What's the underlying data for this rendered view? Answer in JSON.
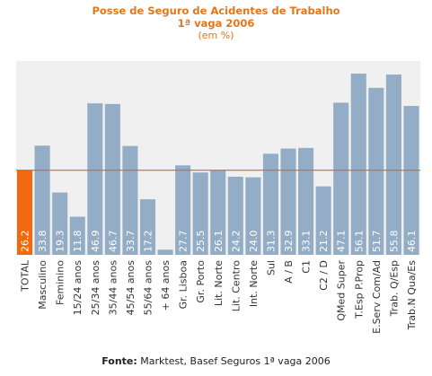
{
  "chart_data": {
    "type": "bar",
    "title": "Posse de Seguro de Acidentes de Trabalho",
    "subtitle": "1ª vaga 2006",
    "unit_note": "(em %)",
    "categories": [
      "TOTAL",
      "Masculino",
      "Feminino",
      "15/24 anos",
      "25/34 anos",
      "35/44 anos",
      "45/54 anos",
      "55/64 anos",
      "+ 64 anos",
      "Gr. Lisboa",
      "Gr. Porto",
      "Lit. Norte",
      "Lit. Centro",
      "Int. Norte",
      "Sul",
      "A / B",
      "C1",
      "C2 / D",
      "QMed Super",
      "T.Esp P.Prop",
      "E.Serv Com/Ad",
      "Trab. Q/Esp",
      "Trab.N Qua/Es"
    ],
    "values": [
      26.2,
      33.8,
      19.3,
      11.8,
      46.9,
      46.7,
      33.7,
      17.2,
      1.6,
      27.7,
      25.5,
      26.1,
      24.2,
      24.0,
      31.3,
      32.9,
      33.1,
      21.2,
      47.1,
      56.1,
      51.7,
      55.8,
      46.1
    ],
    "labels": [
      "26.2",
      "33.8",
      "19.3",
      "11.8",
      "46.9",
      "46.7",
      "33.7",
      "17.2",
      "",
      "27.7",
      "25.5",
      "26.1",
      "24.2",
      "24.0",
      "31.3",
      "32.9",
      "33.1",
      "21.2",
      "47.1",
      "56.1",
      "51.7",
      "55.8",
      "46.1"
    ],
    "highlight_index": 0,
    "reference_line": 26.2,
    "ylim": [
      0,
      60
    ],
    "grid": false,
    "colors": {
      "bar": "#94ADC6",
      "highlight": "#F26A10",
      "reference_line": "#D9661F",
      "plot_bg": "#F0F0F0",
      "title": "#E2761B",
      "value_label": "#FFFFFF"
    }
  },
  "footer": {
    "label": "Fonte:",
    "text": " Marktest, Basef Seguros 1ª vaga 2006"
  }
}
